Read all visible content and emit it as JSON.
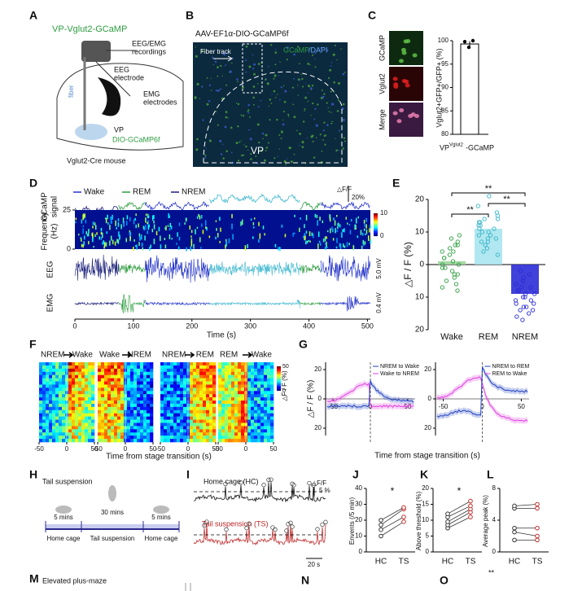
{
  "panels": {
    "A": {
      "letter": "A",
      "title": "VP-Vglut2-GCaMP",
      "eeg_emg": [
        "EEG/EMG",
        "recordings"
      ],
      "eeg": [
        "EEG",
        "electrode"
      ],
      "emg": [
        "EMG",
        "electrodes"
      ],
      "fiber": "fiber",
      "vp": "VP",
      "virus": "DIO-GCaMP6f",
      "mouse": "Vglut2-Cre mouse"
    },
    "B": {
      "letter": "B",
      "title": "AAV-EF1α-DIO-GCaMP6f",
      "stain": [
        "GCaMP",
        "/DAPI"
      ],
      "fiber": "Fiber track",
      "vp": "VP"
    },
    "C": {
      "letter": "C",
      "rows": [
        "GCaMP",
        "Vglut2",
        "Merge"
      ],
      "chart": {
        "type": "bar",
        "ylabel": "Vglut2+GFP+/GFP+ (%)",
        "xlabel": [
          "VP",
          "Vglut2",
          "-GCaMP"
        ],
        "ylim": [
          80,
          100
        ],
        "yticks": [
          80,
          85,
          90,
          95,
          100
        ],
        "value": 99.3,
        "error": 0.6,
        "points": [
          99.8,
          98.6,
          100
        ]
      }
    },
    "D": {
      "letter": "D",
      "legend": [
        {
          "name": "Wake",
          "color": "#2636c9"
        },
        {
          "name": "REM",
          "color": "#2e9e40"
        },
        {
          "name": "NREM",
          "color": "#1b1f7a"
        }
      ],
      "rows": [
        [
          "GCaMP",
          "signal"
        ],
        [
          "Frequency",
          "(Hz)"
        ],
        "EEG",
        "EMG"
      ],
      "scale": [
        "△F/F",
        "20%"
      ],
      "eeg_scale": "5.0 mV",
      "emg_scale": "0.4 mV",
      "freq_lim": [
        0,
        25
      ],
      "freq_ticks": [
        25,
        0
      ],
      "colorbar_lim": [
        0,
        10
      ],
      "colorbar_ticks": [
        10,
        0
      ],
      "xlabel": "Time (s)",
      "xlim": [
        0,
        505
      ],
      "xticks": [
        0,
        100,
        200,
        300,
        400,
        500
      ]
    },
    "E": {
      "letter": "E",
      "chart": {
        "type": "bar",
        "ylabel": "△F / F (%)",
        "categories": [
          "Wake",
          "REM",
          "NREM"
        ],
        "colors": [
          "#2e9e40",
          "#35b5c8",
          "#2b2bd6"
        ],
        "values": [
          1,
          11,
          -9
        ],
        "points": [
          [
            9,
            8,
            7,
            6,
            5,
            4,
            3,
            2,
            1,
            0,
            -1,
            -2,
            -3,
            -4,
            -5,
            -6,
            -7,
            -8,
            2,
            -1,
            4,
            0,
            -3,
            6
          ],
          [
            21,
            18,
            16,
            15,
            14,
            13,
            12,
            11,
            10,
            9,
            8,
            7,
            6,
            5,
            4,
            3,
            12,
            10,
            13,
            9,
            11,
            8,
            14,
            7
          ],
          [
            -2,
            -3,
            -4,
            -5,
            -6,
            -7,
            -8,
            -9,
            -10,
            -11,
            -12,
            -13,
            -14,
            -15,
            -16,
            -17,
            -9,
            -11,
            -8,
            -12,
            -10,
            -13,
            -7,
            -14
          ]
        ],
        "ylim": [
          -20,
          20
        ],
        "yticks": [
          {
            "value": -20,
            "label": "20"
          },
          {
            "value": -10,
            "label": "10"
          },
          0,
          10,
          20
        ],
        "significance": [
          "**",
          "**",
          "**"
        ]
      }
    },
    "F": {
      "letter": "F",
      "titles": [
        [
          "NREM",
          "Wake"
        ],
        [
          "Wake",
          "NREM"
        ],
        [
          "NREM",
          "REM"
        ],
        [
          "REM",
          "Wake"
        ]
      ],
      "xlim": [
        -50,
        50
      ],
      "xticks": [
        -50,
        0,
        50
      ],
      "colorbar": {
        "label": "△F / F (%)",
        "lim": [
          0,
          50
        ],
        "ticks": [
          50,
          0
        ]
      },
      "xlabel": "Time from stage transition (s)"
    },
    "G": {
      "letter": "G",
      "plots": [
        {
          "legend": [
            "NREM to Wake",
            "Wake to NREM"
          ]
        },
        {
          "legend": [
            "NREM to REM",
            "REM to Wake"
          ]
        }
      ],
      "ylabel": "△F / F (%)",
      "ylim": [
        -25,
        25
      ],
      "yticks": [
        {
          "value": -20,
          "label": "20"
        },
        0,
        20
      ],
      "xlim": [
        -60,
        60
      ],
      "xticks": [
        -50,
        0,
        50
      ],
      "xlabel": "Time from stage transition (s)"
    },
    "H": {
      "letter": "H",
      "title": "Tail suspension",
      "durations": [
        "5 mins",
        "30 mins",
        "5 mins"
      ],
      "stages": [
        "Home cage",
        "Tail suspension",
        "Home cage"
      ]
    },
    "I": {
      "letter": "I",
      "hc": "Home cage (HC)",
      "ts": "Tail suspension (TS)",
      "scale": [
        "△F/F",
        "5 %"
      ],
      "time_scale": "20 s"
    },
    "J": {
      "letter": "J",
      "chart": {
        "type": "paired",
        "ylabel": "Envents (/5 min)",
        "categories": [
          "HC",
          "TS"
        ],
        "ylim": [
          0,
          40
        ],
        "yticks": [
          0,
          10,
          20,
          30,
          40
        ],
        "values": [
          [
            10,
            19
          ],
          [
            14,
            22
          ],
          [
            17,
            27
          ],
          [
            20,
            28
          ]
        ],
        "significance": "*"
      }
    },
    "K": {
      "letter": "K",
      "chart": {
        "type": "paired",
        "ylabel": "Above threshold (%)",
        "categories": [
          "HC",
          "TS"
        ],
        "ylim": [
          0,
          20
        ],
        "yticks": [
          0,
          5,
          10,
          15,
          20
        ],
        "values": [
          [
            7.5,
            11
          ],
          [
            8.5,
            12.5
          ],
          [
            9.5,
            13.5
          ],
          [
            11,
            14.5
          ],
          [
            12,
            16
          ]
        ],
        "significance": "*"
      }
    },
    "L": {
      "letter": "L",
      "chart": {
        "type": "paired",
        "ylabel": "Average peak (%)",
        "categories": [
          "HC",
          "TS"
        ],
        "ylim": [
          0,
          8
        ],
        "yticks": [
          0,
          4,
          8
        ],
        "values": [
          [
            1.5,
            1.5
          ],
          [
            2.5,
            2
          ],
          [
            3,
            3
          ],
          [
            5.5,
            5.5
          ],
          [
            5.8,
            6
          ]
        ]
      }
    },
    "M": {
      "letter": "M",
      "title": "Elevated plus-maze"
    },
    "N": {
      "letter": "N"
    },
    "O": {
      "letter": "O",
      "significance": "**"
    }
  }
}
